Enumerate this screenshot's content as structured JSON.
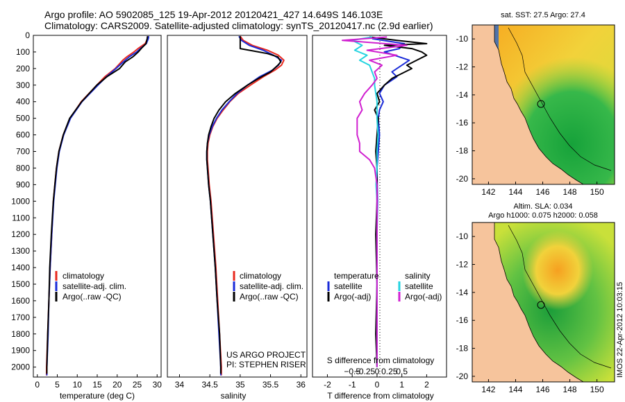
{
  "header": {
    "title_line1": "Argo profile: AO 5902085_125 19-Apr-2012 20120421_427 14.649S 146.103E",
    "title_line2": "Climatology: CARS2009. Satellite-adjusted climatology: synTS_20120417.nc (2.9d earlier)"
  },
  "colors": {
    "climatology": "#e8281e",
    "satellite": "#1a2bd8",
    "argo": "#000000",
    "sat_salinity": "#22d3e0",
    "argo_salinity": "#d020d0"
  },
  "depth_axis": {
    "ticks": [
      0,
      100,
      200,
      300,
      400,
      500,
      600,
      700,
      800,
      900,
      1000,
      1100,
      1200,
      1300,
      1400,
      1500,
      1600,
      1700,
      1800,
      1900,
      2000
    ]
  },
  "chart_data": [
    {
      "type": "line",
      "name": "temperature",
      "xlabel": "temperature (deg C)",
      "xlim": [
        -1,
        31
      ],
      "xticks": [
        0,
        5,
        10,
        15,
        20,
        25,
        30
      ],
      "ylim": [
        2060,
        0
      ],
      "legend": [
        "climatology",
        "satellite-adj. clim.",
        "Argo(..raw -QC)"
      ],
      "series": [
        {
          "name": "climatology",
          "depth": [
            5,
            20,
            50,
            80,
            100,
            130,
            150,
            200,
            250,
            300,
            400,
            500,
            600,
            700,
            800,
            900,
            1000,
            1200,
            1400,
            1600,
            1800,
            2000,
            2050
          ],
          "values": [
            27.8,
            27.6,
            27.0,
            25.2,
            24.2,
            22.4,
            21.4,
            19.5,
            16.9,
            14.9,
            11.0,
            8.2,
            6.5,
            5.4,
            4.8,
            4.4,
            4.0,
            3.6,
            3.2,
            2.9,
            2.6,
            2.3,
            2.3
          ]
        },
        {
          "name": "satellite-adj. clim.",
          "depth": [
            5,
            20,
            50,
            80,
            100,
            130,
            150,
            200,
            250,
            300,
            400,
            500,
            600,
            700,
            800,
            900,
            1000,
            1200,
            1400,
            1600,
            1800,
            2000,
            2050
          ],
          "values": [
            27.9,
            27.8,
            27.3,
            25.8,
            24.9,
            23.0,
            22.0,
            19.7,
            17.3,
            15.2,
            11.2,
            8.3,
            6.6,
            5.5,
            4.9,
            4.5,
            4.1,
            3.6,
            3.2,
            2.9,
            2.7,
            2.4,
            2.4
          ]
        },
        {
          "name": "Argo(..raw -QC)",
          "depth": [
            5,
            20,
            50,
            80,
            100,
            130,
            160,
            200,
            250,
            300,
            400,
            500,
            600,
            700,
            800,
            900,
            1000,
            1200,
            1400,
            1600,
            1800,
            2000,
            2040
          ],
          "values": [
            27.6,
            27.5,
            27.2,
            26.0,
            25.3,
            23.9,
            22.0,
            20.6,
            17.4,
            14.9,
            11.1,
            8.1,
            6.5,
            5.4,
            4.8,
            4.4,
            4.0,
            3.5,
            3.1,
            2.9,
            2.6,
            2.4,
            2.4
          ]
        }
      ]
    },
    {
      "type": "line",
      "name": "salinity",
      "xlabel": "salinity",
      "xlim": [
        33.8,
        36.1
      ],
      "xticks": [
        34,
        34.5,
        35,
        35.5,
        36
      ],
      "ylim": [
        2060,
        0
      ],
      "legend": [
        "climatology",
        "satellite-adj. clim.",
        "Argo(..raw -QC)"
      ],
      "series": [
        {
          "name": "climatology",
          "depth": [
            5,
            30,
            60,
            90,
            120,
            150,
            180,
            210,
            250,
            300,
            350,
            400,
            450,
            500,
            550,
            600,
            650,
            700,
            750,
            800,
            900,
            1000,
            1200,
            1400,
            1600,
            1800,
            2000,
            2050
          ],
          "values": [
            35.0,
            35.05,
            35.2,
            35.45,
            35.63,
            35.72,
            35.68,
            35.57,
            35.38,
            35.17,
            34.97,
            34.83,
            34.72,
            34.62,
            34.55,
            34.5,
            34.47,
            34.46,
            34.46,
            34.47,
            34.49,
            34.52,
            34.56,
            34.6,
            34.63,
            34.66,
            34.69,
            34.69
          ]
        },
        {
          "name": "satellite-adj. clim.",
          "depth": [
            5,
            30,
            60,
            90,
            120,
            150,
            180,
            210,
            250,
            300,
            350,
            400,
            450,
            500,
            550,
            600,
            650,
            700,
            750,
            800,
            900,
            1000,
            1200,
            1400,
            1600,
            1800,
            2000,
            2050
          ],
          "values": [
            34.98,
            35.02,
            35.15,
            35.38,
            35.55,
            35.68,
            35.63,
            35.53,
            35.32,
            35.12,
            34.95,
            34.82,
            34.7,
            34.61,
            34.54,
            34.49,
            34.46,
            34.45,
            34.45,
            34.46,
            34.48,
            34.51,
            34.55,
            34.59,
            34.62,
            34.65,
            34.68,
            34.68
          ]
        },
        {
          "name": "Argo(..raw -QC)",
          "depth": [
            5,
            40,
            80,
            100,
            110,
            130,
            160,
            180,
            220,
            260,
            300,
            350,
            400,
            450,
            500,
            550,
            600,
            650,
            700,
            750,
            800,
            900,
            1000,
            1200,
            1400,
            1600,
            1800,
            2000,
            2040
          ],
          "values": [
            35.0,
            35.0,
            35.0,
            35.3,
            35.45,
            35.62,
            35.67,
            35.62,
            35.5,
            35.3,
            35.12,
            34.92,
            34.76,
            34.65,
            34.57,
            34.52,
            34.48,
            34.46,
            34.45,
            34.45,
            34.46,
            34.48,
            34.51,
            34.55,
            34.59,
            34.62,
            34.66,
            34.68,
            34.68
          ]
        }
      ]
    },
    {
      "type": "line",
      "name": "difference",
      "xlabel": "T difference from climatology",
      "xlabel_top": "S difference from climatology",
      "xlim": [
        -2.6,
        2.8
      ],
      "xticks": [
        -2,
        -1,
        0,
        1,
        2
      ],
      "xticks_top": [
        -0.5,
        -0.25,
        0,
        0.25,
        0.5
      ],
      "xticks_top_labels": [
        "−0.5",
        "−0.25",
        "0",
        "0.25",
        "0.5"
      ],
      "ylim": [
        2060,
        0
      ],
      "legend": {
        "temperature": "temperature",
        "salinity": "salinity",
        "items": [
          "satellite",
          "Argo(-adj)",
          "satellite",
          "Argo(-adj)"
        ]
      },
      "series": [
        {
          "name": "T satellite",
          "depth": [
            20,
            50,
            80,
            100,
            120,
            150,
            180,
            220,
            250,
            300,
            350,
            400,
            450,
            500,
            600,
            700,
            800,
            1000,
            1200,
            1500,
            1800,
            2000
          ],
          "values": [
            -0.2,
            1.1,
            0.9,
            0.3,
            0.7,
            1.3,
            1.0,
            0.6,
            0.8,
            0.3,
            0.1,
            0.25,
            0.1,
            0.05,
            0.1,
            0.05,
            0.0,
            0.02,
            0.0,
            0.0,
            0.0,
            0.0
          ]
        },
        {
          "name": "T Argo(-adj)",
          "depth": [
            10,
            30,
            50,
            60,
            80,
            100,
            120,
            150,
            180,
            200,
            230,
            260,
            300,
            350,
            400,
            450,
            500,
            600,
            700,
            800,
            1000,
            1200,
            1500,
            1800,
            2000
          ],
          "values": [
            -0.3,
            0.8,
            2.0,
            0.3,
            1.4,
            1.8,
            2.0,
            1.6,
            1.2,
            1.4,
            1.0,
            0.6,
            0.3,
            0.0,
            0.1,
            -0.1,
            0.05,
            0.0,
            -0.05,
            0.0,
            0.0,
            -0.05,
            0.0,
            -0.05,
            0.0
          ]
        },
        {
          "name": "S satellite",
          "depth": [
            10,
            30,
            60,
            90,
            120,
            150,
            180,
            220,
            260,
            300,
            400,
            500,
            600,
            700,
            800,
            900,
            1000,
            1200,
            1500,
            1800,
            2000
          ],
          "values": [
            -0.1,
            -0.5,
            -0.3,
            -0.45,
            -0.2,
            -0.35,
            -0.15,
            -0.1,
            -0.05,
            -0.05,
            0.0,
            0.0,
            0.02,
            0.0,
            0.0,
            -0.02,
            0.0,
            0.0,
            0.0,
            0.0,
            0.0
          ]
        },
        {
          "name": "S Argo(-adj)",
          "depth": [
            10,
            30,
            60,
            90,
            120,
            150,
            180,
            220,
            260,
            300,
            350,
            400,
            450,
            500,
            550,
            600,
            650,
            700,
            750,
            800,
            900,
            1000,
            1200,
            1500,
            1800,
            2000
          ],
          "values": [
            0.2,
            -0.7,
            0.6,
            -0.2,
            0.4,
            -0.15,
            0.1,
            -0.05,
            0.0,
            -0.1,
            -0.25,
            -0.35,
            -0.3,
            -0.4,
            -0.4,
            -0.4,
            -0.35,
            -0.35,
            -0.15,
            -0.05,
            0.0,
            0.0,
            0.0,
            0.0,
            0.0,
            0.0
          ]
        }
      ],
      "annotation": [
        "US ARGO PROJECT",
        "PI: STEPHEN RISER"
      ]
    },
    {
      "type": "heatmap",
      "name": "sst-map",
      "title": "sat. SST: 27.5  Argo: 27.4",
      "xlim": [
        140.8,
        151.3
      ],
      "ylim": [
        -20.4,
        -9.0
      ],
      "xticks": [
        142,
        144,
        146,
        148,
        150
      ],
      "yticks": [
        -10,
        -12,
        -14,
        -16,
        -18,
        -20
      ],
      "float_position": {
        "lon": 146.103,
        "lat": -14.649
      }
    },
    {
      "type": "heatmap",
      "name": "sla-map",
      "title_line1": "Altim. SLA: 0.034",
      "title_line2": "Argo h1000: 0.075 h2000: 0.058",
      "xlim": [
        140.8,
        151.3
      ],
      "ylim": [
        -20.4,
        -9.0
      ],
      "xticks": [
        142,
        144,
        146,
        148,
        150
      ],
      "yticks": [
        -10,
        -12,
        -14,
        -16,
        -18,
        -20
      ],
      "float_position": {
        "lon": 146.103,
        "lat": -14.649
      }
    }
  ],
  "side_stamp": "IMOS 22-Apr-2012 10:03:15"
}
